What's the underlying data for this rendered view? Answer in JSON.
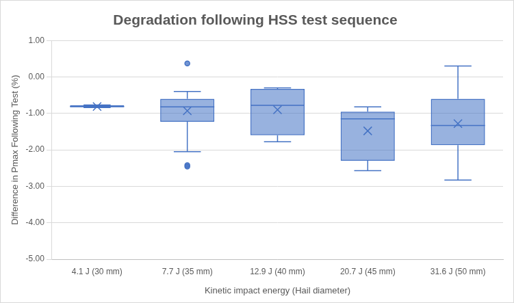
{
  "chart_data": {
    "type": "boxplot",
    "title": "Degradation following HSS test sequence",
    "x_label": "Kinetic impact energy (Hail diameter)",
    "y_label": "Difference in Pmax Following Test (%)",
    "categories": [
      "4.1 J (30 mm)",
      "7.7 J (35 mm)",
      "12.9 J (40 mm)",
      "20.7 J (45 mm)",
      "31.6 J (50 mm)"
    ],
    "boxes": [
      {
        "min": -0.84,
        "q1": -0.83,
        "median": -0.81,
        "q3": -0.78,
        "max": -0.77,
        "mean": -0.81,
        "outliers": []
      },
      {
        "min": -2.05,
        "q1": -1.23,
        "median": -0.82,
        "q3": -0.6,
        "max": -0.4,
        "mean": -0.93,
        "outliers": [
          0.37,
          -2.42,
          -2.46
        ]
      },
      {
        "min": -1.78,
        "q1": -1.6,
        "median": -0.78,
        "q3": -0.33,
        "max": -0.3,
        "mean": -0.9,
        "outliers": []
      },
      {
        "min": -2.57,
        "q1": -2.3,
        "median": -1.15,
        "q3": -0.95,
        "max": -0.82,
        "mean": -1.48,
        "outliers": []
      },
      {
        "min": -2.83,
        "q1": -1.87,
        "median": -1.33,
        "q3": -0.6,
        "max": 0.3,
        "mean": -1.28,
        "outliers": []
      }
    ],
    "color": "#4472c4",
    "ylim": [
      -5,
      1
    ],
    "yticks": [
      {
        "value": -5,
        "label": "-5.00"
      },
      {
        "value": -4,
        "label": "-4.00"
      },
      {
        "value": -3,
        "label": "-3.00"
      },
      {
        "value": -2,
        "label": "-2.00"
      },
      {
        "value": -1,
        "label": "-1.00"
      },
      {
        "value": 0,
        "label": "0.00"
      },
      {
        "value": 1,
        "label": "1.00"
      }
    ],
    "grid": true
  }
}
